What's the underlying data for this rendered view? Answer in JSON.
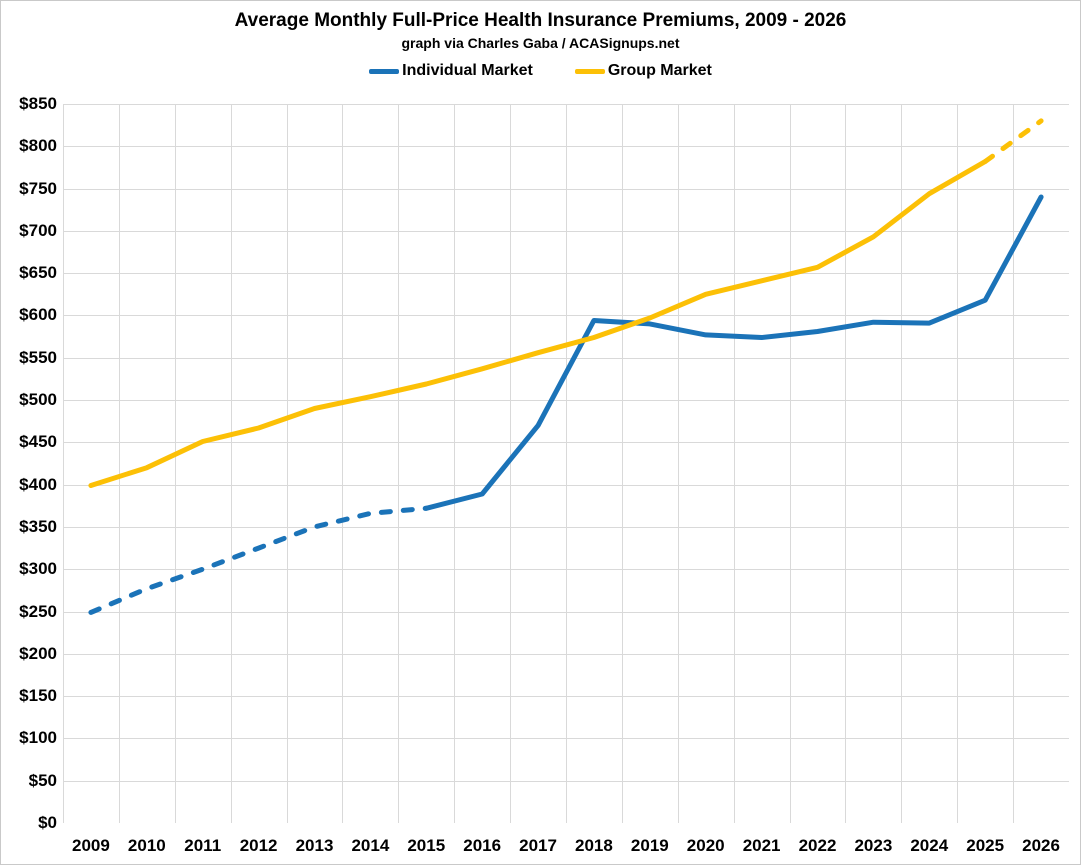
{
  "chart_data": {
    "type": "line",
    "title": "Average Monthly Full-Price Health Insurance Premiums, 2009 - 2026",
    "subtitle": "graph via Charles Gaba / ACASignups.net",
    "x": [
      "2009",
      "2010",
      "2011",
      "2012",
      "2013",
      "2014",
      "2015",
      "2016",
      "2017",
      "2018",
      "2019",
      "2020",
      "2021",
      "2022",
      "2023",
      "2024",
      "2025",
      "2026"
    ],
    "series": [
      {
        "name": "Individual Market",
        "color": "#1b73b8",
        "values": [
          249,
          277,
          300,
          325,
          350,
          366,
          372,
          389,
          470,
          594,
          590,
          577,
          574,
          581,
          592,
          591,
          618,
          740
        ],
        "dashed_from": "2009",
        "dashed_to": "2015"
      },
      {
        "name": "Group Market",
        "color": "#fcc006",
        "values": [
          399,
          420,
          451,
          467,
          490,
          504,
          519,
          537,
          556,
          574,
          597,
          625,
          641,
          657,
          693,
          744,
          782,
          830
        ],
        "dashed_from": "2025",
        "dashed_to": "2026"
      }
    ],
    "ylim": [
      0,
      850
    ],
    "y_tick_step": 50,
    "y_tick_prefix": "$",
    "y_tick_labels": [
      "$850",
      "$800",
      "$750",
      "$700",
      "$650",
      "$600",
      "$550",
      "$500",
      "$450",
      "$400",
      "$350",
      "$300",
      "$250",
      "$200",
      "$150",
      "$100",
      "$50",
      "$0"
    ],
    "grid": true,
    "legend_position": "top"
  },
  "colors": {
    "grid": "#d9d9d9",
    "text": "#000000",
    "background": "#ffffff"
  }
}
